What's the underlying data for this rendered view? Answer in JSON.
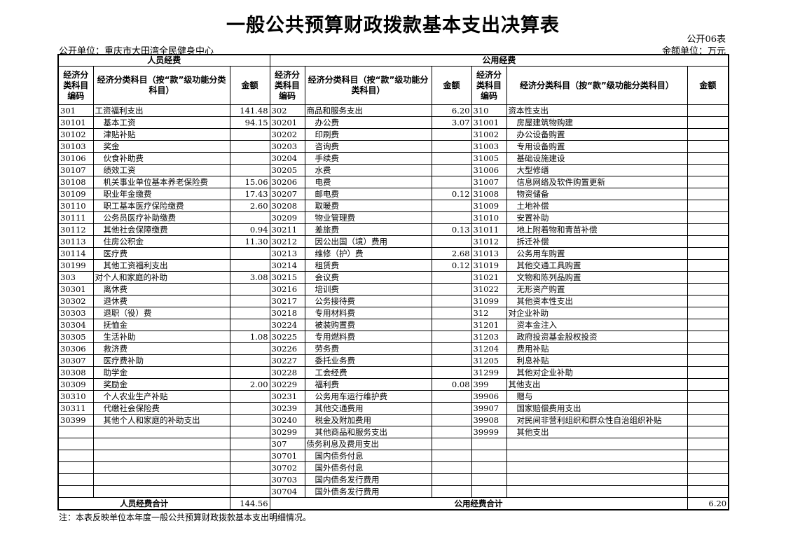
{
  "title": "一般公共预算财政拨款基本支出决算表",
  "table_no": "公开06表",
  "unit": "公开单位：重庆市大田湾全民健身中心",
  "money_unit": "金额单位：万元",
  "headers": {
    "personnel": "人员经费",
    "public": "公用经费",
    "code": "经济分类科目编码",
    "name_a": "经济分类科目（按“款”级功能分类科目）",
    "name_b": "经济分类科目（按“款”级功能分类科目）",
    "name_c": "经济分类科目（按“款”级功能分类科目）",
    "amount": "金额"
  },
  "personnel_rows": [
    [
      "301",
      "工资福利支出",
      "141.48"
    ],
    [
      "30101",
      "基本工资",
      "94.15"
    ],
    [
      "30102",
      "津贴补贴",
      ""
    ],
    [
      "30103",
      "奖金",
      ""
    ],
    [
      "30106",
      "伙食补助费",
      ""
    ],
    [
      "30107",
      "绩效工资",
      ""
    ],
    [
      "30108",
      "机关事业单位基本养老保险费",
      "15.06"
    ],
    [
      "30109",
      "职业年金缴费",
      "17.43"
    ],
    [
      "30110",
      "职工基本医疗保险缴费",
      "2.60"
    ],
    [
      "30111",
      "公务员医疗补助缴费",
      ""
    ],
    [
      "30112",
      "其他社会保障缴费",
      "0.94"
    ],
    [
      "30113",
      "住房公积金",
      "11.30"
    ],
    [
      "30114",
      "医疗费",
      ""
    ],
    [
      "30199",
      "其他工资福利支出",
      ""
    ],
    [
      "303",
      "对个人和家庭的补助",
      "3.08"
    ],
    [
      "30301",
      "离休费",
      ""
    ],
    [
      "30302",
      "退休费",
      ""
    ],
    [
      "30303",
      "退职（役）费",
      ""
    ],
    [
      "30304",
      "抚恤金",
      ""
    ],
    [
      "30305",
      "生活补助",
      "1.08"
    ],
    [
      "30306",
      "救济费",
      ""
    ],
    [
      "30307",
      "医疗费补助",
      ""
    ],
    [
      "30308",
      "助学金",
      ""
    ],
    [
      "30309",
      "奖励金",
      "2.00"
    ],
    [
      "30310",
      "个人农业生产补贴",
      ""
    ],
    [
      "30311",
      "代缴社会保险费",
      ""
    ],
    [
      "30399",
      "其他个人和家庭的补助支出",
      ""
    ],
    [
      "",
      "",
      ""
    ],
    [
      "",
      "",
      ""
    ],
    [
      "",
      "",
      ""
    ],
    [
      "",
      "",
      ""
    ],
    [
      "",
      "",
      ""
    ],
    [
      "",
      "",
      ""
    ]
  ],
  "public_rows_a": [
    [
      "302",
      "商品和服务支出",
      "6.20"
    ],
    [
      "30201",
      "办公费",
      "3.07"
    ],
    [
      "30202",
      "印刷费",
      ""
    ],
    [
      "30203",
      "咨询费",
      ""
    ],
    [
      "30204",
      "手续费",
      ""
    ],
    [
      "30205",
      "水费",
      ""
    ],
    [
      "30206",
      "电费",
      ""
    ],
    [
      "30207",
      "邮电费",
      "0.12"
    ],
    [
      "30208",
      "取暖费",
      ""
    ],
    [
      "30209",
      "物业管理费",
      ""
    ],
    [
      "30211",
      "差旅费",
      "0.13"
    ],
    [
      "30212",
      "因公出国（境）费用",
      ""
    ],
    [
      "30213",
      "维修（护）费",
      "2.68"
    ],
    [
      "30214",
      "租赁费",
      "0.12"
    ],
    [
      "30215",
      "会议费",
      ""
    ],
    [
      "30216",
      "培训费",
      ""
    ],
    [
      "30217",
      "公务接待费",
      ""
    ],
    [
      "30218",
      "专用材料费",
      ""
    ],
    [
      "30224",
      "被装购置费",
      ""
    ],
    [
      "30225",
      "专用燃料费",
      ""
    ],
    [
      "30226",
      "劳务费",
      ""
    ],
    [
      "30227",
      "委托业务费",
      ""
    ],
    [
      "30228",
      "工会经费",
      ""
    ],
    [
      "30229",
      "福利费",
      "0.08"
    ],
    [
      "30231",
      "公务用车运行维护费",
      ""
    ],
    [
      "30239",
      "其他交通费用",
      ""
    ],
    [
      "30240",
      "税金及附加费用",
      ""
    ],
    [
      "30299",
      "其他商品和服务支出",
      ""
    ],
    [
      "307",
      "债务利息及费用支出",
      ""
    ],
    [
      "30701",
      "国内债务付息",
      ""
    ],
    [
      "30702",
      "国外债务付息",
      ""
    ],
    [
      "30703",
      "国内债务发行费用",
      ""
    ],
    [
      "30704",
      "国外债务发行费用",
      ""
    ]
  ],
  "public_rows_b": [
    [
      "310",
      "资本性支出",
      ""
    ],
    [
      "31001",
      "房屋建筑物购建",
      ""
    ],
    [
      "31002",
      "办公设备购置",
      ""
    ],
    [
      "31003",
      "专用设备购置",
      ""
    ],
    [
      "31005",
      "基础设施建设",
      ""
    ],
    [
      "31006",
      "大型修缮",
      ""
    ],
    [
      "31007",
      "信息网络及软件购置更新",
      ""
    ],
    [
      "31008",
      "物资储备",
      ""
    ],
    [
      "31009",
      "土地补偿",
      ""
    ],
    [
      "31010",
      "安置补助",
      ""
    ],
    [
      "31011",
      "地上附着物和青苗补偿",
      ""
    ],
    [
      "31012",
      "拆迁补偿",
      ""
    ],
    [
      "31013",
      "公务用车购置",
      ""
    ],
    [
      "31019",
      "其他交通工具购置",
      ""
    ],
    [
      "31021",
      "文物和陈列品购置",
      ""
    ],
    [
      "31022",
      "无形资产购置",
      ""
    ],
    [
      "31099",
      "其他资本性支出",
      ""
    ],
    [
      "312",
      "对企业补助",
      ""
    ],
    [
      "31201",
      "资本金注入",
      ""
    ],
    [
      "31203",
      "政府投资基金股权投资",
      ""
    ],
    [
      "31204",
      "费用补贴",
      ""
    ],
    [
      "31205",
      "利息补贴",
      ""
    ],
    [
      "31299",
      "其他对企业补助",
      ""
    ],
    [
      "399",
      "其他支出",
      ""
    ],
    [
      "39906",
      "赠与",
      ""
    ],
    [
      "39907",
      "国家赔偿费用支出",
      ""
    ],
    [
      "39908",
      "对民间非营利组织和群众性自治组织补贴",
      ""
    ],
    [
      "39999",
      "其他支出",
      ""
    ],
    [
      "",
      "",
      ""
    ],
    [
      "",
      "",
      ""
    ],
    [
      "",
      "",
      ""
    ],
    [
      "",
      "",
      ""
    ],
    [
      "",
      "",
      ""
    ]
  ],
  "totals": {
    "personnel_label": "人员经费合计",
    "personnel_amount": "144.56",
    "public_label": "公用经费合计",
    "public_amount": "6.20"
  },
  "note": "注：本表反映单位本年度一般公共预算财政拨款基本支出明细情况。"
}
